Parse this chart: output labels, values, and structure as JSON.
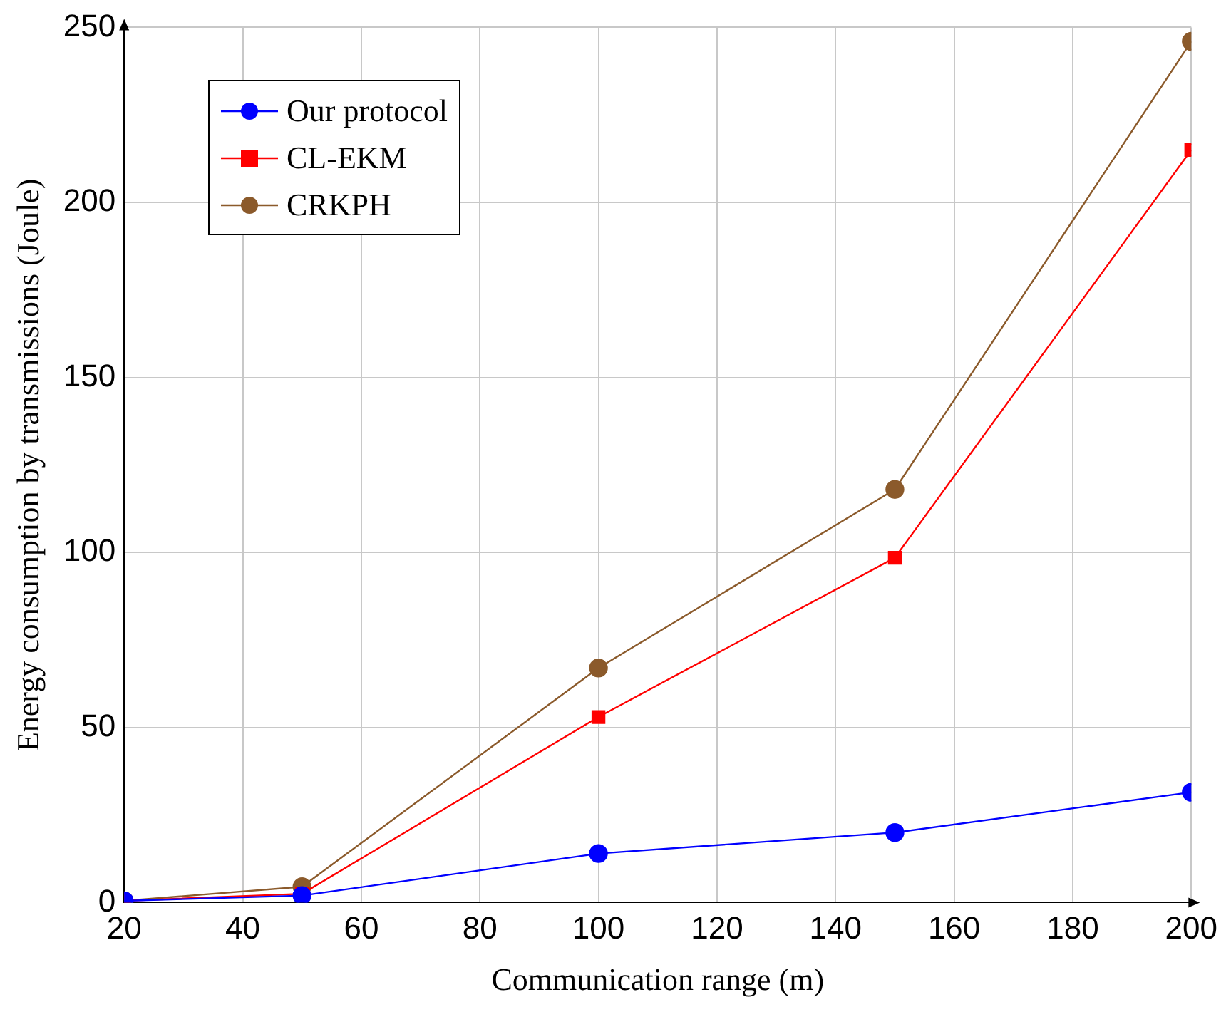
{
  "chart_data": {
    "type": "line",
    "xlabel": "Communication range (m)",
    "ylabel": "Energy consumption by transmissions (Joule)",
    "x": [
      20,
      50,
      100,
      150,
      200
    ],
    "series": [
      {
        "name": "Our protocol",
        "color": "#0000ff",
        "marker": "circle",
        "values": [
          0.5,
          2,
          14,
          20,
          31.5
        ]
      },
      {
        "name": "CL-EKM",
        "color": "#ff0000",
        "marker": "square",
        "values": [
          0.5,
          2.5,
          53,
          98.5,
          215
        ]
      },
      {
        "name": "CRKPH",
        "color": "#8b5a2b",
        "marker": "circle",
        "values": [
          0.5,
          4.5,
          67,
          118,
          246
        ]
      }
    ],
    "xlim": [
      20,
      200
    ],
    "xticks": [
      20,
      40,
      60,
      80,
      100,
      120,
      140,
      160,
      180,
      200
    ],
    "ylim": [
      0,
      250
    ],
    "yticks": [
      0,
      50,
      100,
      150,
      200,
      250
    ],
    "grid": true,
    "legend": "top left",
    "line_style": "solid"
  }
}
